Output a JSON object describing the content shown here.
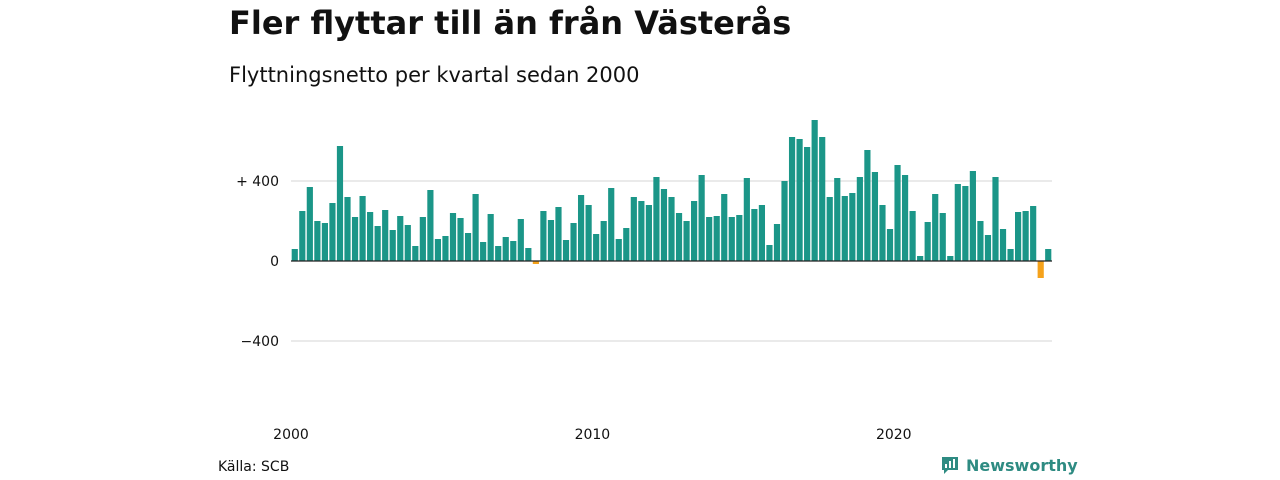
{
  "header": {
    "title": "Fler flyttar till än från Västerås",
    "subtitle": "Flyttningsnetto per kvartal sedan 2000"
  },
  "footer": {
    "source": "Källa: SCB",
    "brand": "Newsworthy",
    "brand_icon": "bar-chart-logo-icon"
  },
  "colors": {
    "positive": "#1b9688",
    "negative": "#f5a21b",
    "grid": "#d6d6d6",
    "zero_line": "#222222",
    "brand": "#2e8b82"
  },
  "chart_data": {
    "type": "bar",
    "title": "Fler flyttar till än från Västerås",
    "subtitle": "Flyttningsnetto per kvartal sedan 2000",
    "xlabel": "",
    "ylabel": "",
    "ylim": [
      -500,
      720
    ],
    "y_ticks": [
      400,
      0,
      -400
    ],
    "y_tick_labels": [
      "+ 400",
      "0",
      "−400"
    ],
    "x_tick_labels": [
      "2000",
      "2010",
      "2020"
    ],
    "grid": true,
    "start_year": 2000,
    "values": [
      60,
      250,
      370,
      200,
      190,
      290,
      575,
      320,
      220,
      325,
      245,
      175,
      255,
      155,
      225,
      180,
      75,
      220,
      355,
      110,
      125,
      240,
      215,
      140,
      335,
      95,
      235,
      75,
      120,
      100,
      210,
      65,
      -15,
      250,
      205,
      270,
      105,
      190,
      330,
      280,
      135,
      200,
      365,
      110,
      165,
      320,
      300,
      280,
      420,
      360,
      320,
      240,
      200,
      300,
      430,
      220,
      225,
      335,
      220,
      230,
      415,
      260,
      280,
      80,
      185,
      400,
      620,
      610,
      570,
      705,
      620,
      320,
      415,
      325,
      340,
      420,
      555,
      445,
      280,
      160,
      480,
      430,
      250,
      25,
      195,
      335,
      240,
      25,
      385,
      375,
      450,
      200,
      130,
      420,
      160,
      60,
      245,
      250,
      275,
      -85,
      60
    ]
  }
}
